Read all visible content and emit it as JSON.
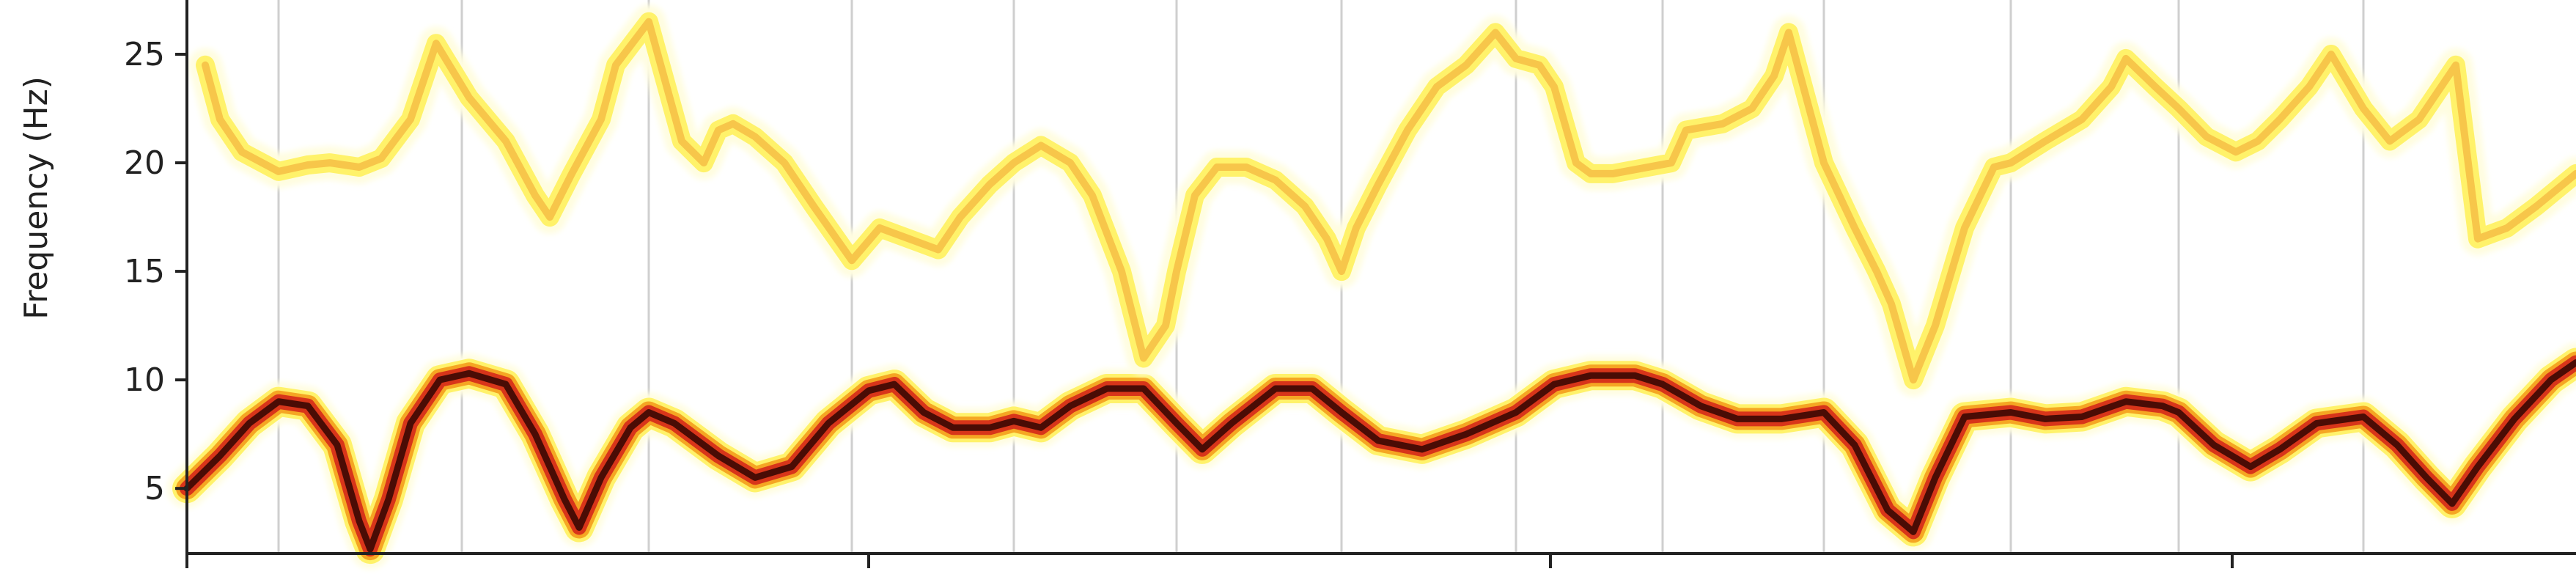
{
  "chart_data": {
    "type": "heatmap",
    "title": "",
    "xlabel": "",
    "ylabel": "Frequency (Hz)",
    "ylim": [
      2,
      27.5
    ],
    "yticks": [
      5,
      10,
      15,
      20,
      25
    ],
    "xlim": [
      0,
      3514
    ],
    "xticks_unlabeled": [
      255,
      1185,
      2115,
      3045
    ],
    "segment_boundaries_x": [
      380,
      630,
      885,
      1162,
      1383,
      1605,
      1830,
      2068,
      2268,
      2488,
      2743,
      2972,
      3224
    ],
    "colormap": "hot_r",
    "colors": {
      "low": "#fffde0",
      "mid_low": "#fff26a",
      "mid": "#f5a623",
      "mid_high": "#d8351a",
      "high": "#4a0c05",
      "boundary_line": "#cfcfcf",
      "axis": "#222222"
    },
    "series": [
      {
        "intensity": "high",
        "points": [
          [
            255,
            5.0
          ],
          [
            300,
            6.5
          ],
          [
            340,
            8.0
          ],
          [
            380,
            9.0
          ],
          [
            420,
            8.8
          ],
          [
            460,
            7.0
          ],
          [
            490,
            3.5
          ],
          [
            505,
            2.2
          ],
          [
            530,
            4.5
          ],
          [
            560,
            8.0
          ],
          [
            600,
            10.0
          ],
          [
            640,
            10.3
          ],
          [
            690,
            9.8
          ],
          [
            730,
            7.5
          ],
          [
            770,
            4.5
          ],
          [
            790,
            3.2
          ],
          [
            820,
            5.5
          ],
          [
            860,
            7.8
          ],
          [
            885,
            8.5
          ],
          [
            920,
            8.0
          ],
          [
            980,
            6.5
          ],
          [
            1030,
            5.5
          ],
          [
            1080,
            6.0
          ],
          [
            1130,
            8.0
          ],
          [
            1185,
            9.5
          ],
          [
            1220,
            9.8
          ],
          [
            1260,
            8.5
          ],
          [
            1300,
            7.8
          ],
          [
            1350,
            7.8
          ],
          [
            1383,
            8.1
          ],
          [
            1420,
            7.8
          ],
          [
            1460,
            8.8
          ],
          [
            1510,
            9.6
          ],
          [
            1560,
            9.6
          ],
          [
            1605,
            8.0
          ],
          [
            1640,
            6.8
          ],
          [
            1680,
            8.0
          ],
          [
            1740,
            9.6
          ],
          [
            1790,
            9.6
          ],
          [
            1830,
            8.5
          ],
          [
            1880,
            7.2
          ],
          [
            1940,
            6.8
          ],
          [
            2000,
            7.5
          ],
          [
            2068,
            8.5
          ],
          [
            2120,
            9.8
          ],
          [
            2170,
            10.2
          ],
          [
            2230,
            10.2
          ],
          [
            2268,
            9.8
          ],
          [
            2320,
            8.8
          ],
          [
            2370,
            8.2
          ],
          [
            2430,
            8.2
          ],
          [
            2488,
            8.5
          ],
          [
            2530,
            7.0
          ],
          [
            2575,
            4.0
          ],
          [
            2610,
            3.0
          ],
          [
            2640,
            5.5
          ],
          [
            2680,
            8.3
          ],
          [
            2743,
            8.5
          ],
          [
            2790,
            8.2
          ],
          [
            2840,
            8.3
          ],
          [
            2900,
            9.0
          ],
          [
            2950,
            8.8
          ],
          [
            2972,
            8.5
          ],
          [
            3020,
            7.0
          ],
          [
            3070,
            6.0
          ],
          [
            3110,
            6.8
          ],
          [
            3160,
            8.0
          ],
          [
            3224,
            8.3
          ],
          [
            3270,
            7.0
          ],
          [
            3310,
            5.5
          ],
          [
            3345,
            4.3
          ],
          [
            3380,
            6.0
          ],
          [
            3430,
            8.2
          ],
          [
            3480,
            10.0
          ],
          [
            3514,
            10.8
          ]
        ]
      },
      {
        "intensity": "medium",
        "points": [
          [
            280,
            24.5
          ],
          [
            300,
            22.0
          ],
          [
            330,
            20.5
          ],
          [
            380,
            19.6
          ],
          [
            420,
            19.9
          ],
          [
            450,
            20.0
          ],
          [
            490,
            19.8
          ],
          [
            520,
            20.2
          ],
          [
            560,
            22.0
          ],
          [
            595,
            25.5
          ],
          [
            640,
            23.0
          ],
          [
            690,
            21.0
          ],
          [
            730,
            18.5
          ],
          [
            750,
            17.5
          ],
          [
            780,
            19.5
          ],
          [
            820,
            22.0
          ],
          [
            840,
            24.5
          ],
          [
            885,
            26.5
          ],
          [
            930,
            21.0
          ],
          [
            960,
            20.0
          ],
          [
            980,
            21.5
          ],
          [
            1000,
            21.8
          ],
          [
            1030,
            21.2
          ],
          [
            1070,
            20.0
          ],
          [
            1110,
            18.0
          ],
          [
            1162,
            15.5
          ],
          [
            1200,
            17.0
          ],
          [
            1240,
            16.5
          ],
          [
            1280,
            16.0
          ],
          [
            1310,
            17.5
          ],
          [
            1350,
            19.0
          ],
          [
            1383,
            20.0
          ],
          [
            1420,
            20.8
          ],
          [
            1460,
            20.0
          ],
          [
            1490,
            18.5
          ],
          [
            1530,
            15.0
          ],
          [
            1560,
            11.0
          ],
          [
            1590,
            12.5
          ],
          [
            1605,
            15.0
          ],
          [
            1630,
            18.5
          ],
          [
            1660,
            19.8
          ],
          [
            1700,
            19.8
          ],
          [
            1740,
            19.2
          ],
          [
            1780,
            18.0
          ],
          [
            1810,
            16.5
          ],
          [
            1830,
            15.0
          ],
          [
            1850,
            17.0
          ],
          [
            1880,
            19.0
          ],
          [
            1920,
            21.5
          ],
          [
            1960,
            23.5
          ],
          [
            2000,
            24.5
          ],
          [
            2040,
            26.0
          ],
          [
            2068,
            24.8
          ],
          [
            2100,
            24.5
          ],
          [
            2120,
            23.5
          ],
          [
            2150,
            20.0
          ],
          [
            2170,
            19.5
          ],
          [
            2200,
            19.5
          ],
          [
            2280,
            20.0
          ],
          [
            2300,
            21.5
          ],
          [
            2350,
            21.8
          ],
          [
            2390,
            22.5
          ],
          [
            2420,
            24.0
          ],
          [
            2440,
            26.0
          ],
          [
            2488,
            20.0
          ],
          [
            2530,
            17.0
          ],
          [
            2560,
            15.0
          ],
          [
            2580,
            13.5
          ],
          [
            2610,
            10.0
          ],
          [
            2640,
            12.5
          ],
          [
            2680,
            17.0
          ],
          [
            2720,
            19.8
          ],
          [
            2743,
            20.0
          ],
          [
            2790,
            21.0
          ],
          [
            2840,
            22.0
          ],
          [
            2880,
            23.5
          ],
          [
            2900,
            24.8
          ],
          [
            2940,
            23.5
          ],
          [
            2972,
            22.5
          ],
          [
            3010,
            21.2
          ],
          [
            3050,
            20.5
          ],
          [
            3080,
            21.0
          ],
          [
            3110,
            22.0
          ],
          [
            3150,
            23.5
          ],
          [
            3180,
            25.0
          ],
          [
            3224,
            22.5
          ],
          [
            3260,
            21.0
          ],
          [
            3300,
            22.0
          ],
          [
            3330,
            23.5
          ],
          [
            3350,
            24.5
          ],
          [
            3380,
            16.5
          ],
          [
            3420,
            17.0
          ],
          [
            3460,
            18.0
          ],
          [
            3514,
            19.5
          ]
        ]
      }
    ]
  }
}
